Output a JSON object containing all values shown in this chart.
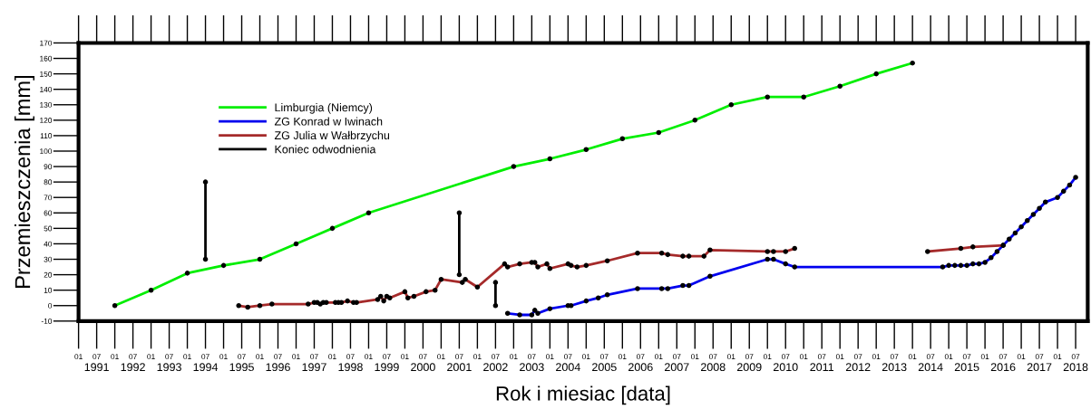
{
  "chart_data": {
    "type": "line",
    "xlabel": "Rok i miesiac [data]",
    "ylabel": "Przemieszczenia [mm]",
    "xlim": [
      "1991-01",
      "2018-11"
    ],
    "ylim": [
      -10,
      170
    ],
    "yticks": [
      -10,
      0,
      10,
      20,
      30,
      40,
      50,
      60,
      70,
      80,
      90,
      100,
      110,
      120,
      130,
      140,
      150,
      160,
      170
    ],
    "xticks": [
      {
        "value": "1991-01",
        "label": "01"
      },
      {
        "value": "1991-07",
        "label": "07"
      },
      {
        "value": "1992-01",
        "label": "01"
      },
      {
        "value": "1992-07",
        "label": "07"
      },
      {
        "value": "1993-01",
        "label": "01"
      },
      {
        "value": "1993-07",
        "label": "07"
      },
      {
        "value": "1994-01",
        "label": "01"
      },
      {
        "value": "1994-07",
        "label": "07"
      },
      {
        "value": "1995-01",
        "label": "01"
      },
      {
        "value": "1995-07",
        "label": "07"
      },
      {
        "value": "1996-01",
        "label": "01"
      },
      {
        "value": "1996-07",
        "label": "07"
      },
      {
        "value": "1997-01",
        "label": "01"
      },
      {
        "value": "1997-07",
        "label": "07"
      },
      {
        "value": "1998-01",
        "label": "01"
      },
      {
        "value": "1998-07",
        "label": "07"
      },
      {
        "value": "1999-01",
        "label": "01"
      },
      {
        "value": "1999-07",
        "label": "07"
      },
      {
        "value": "2000-01",
        "label": "01"
      },
      {
        "value": "2000-07",
        "label": "07"
      },
      {
        "value": "2001-01",
        "label": "01"
      },
      {
        "value": "2001-07",
        "label": "07"
      },
      {
        "value": "2002-01",
        "label": "01"
      },
      {
        "value": "2002-07",
        "label": "07"
      },
      {
        "value": "2003-01",
        "label": "01"
      },
      {
        "value": "2003-07",
        "label": "07"
      },
      {
        "value": "2004-01",
        "label": "01"
      },
      {
        "value": "2004-07",
        "label": "07"
      },
      {
        "value": "2005-01",
        "label": "01"
      },
      {
        "value": "2005-07",
        "label": "07"
      },
      {
        "value": "2006-01",
        "label": "01"
      },
      {
        "value": "2006-07",
        "label": "07"
      },
      {
        "value": "2007-01",
        "label": "01"
      },
      {
        "value": "2007-07",
        "label": "07"
      },
      {
        "value": "2008-01",
        "label": "01"
      },
      {
        "value": "2008-07",
        "label": "07"
      },
      {
        "value": "2009-01",
        "label": "01"
      },
      {
        "value": "2009-07",
        "label": "07"
      },
      {
        "value": "2010-01",
        "label": "01"
      },
      {
        "value": "2010-07",
        "label": "07"
      },
      {
        "value": "2011-01",
        "label": "01"
      },
      {
        "value": "2011-07",
        "label": "07"
      },
      {
        "value": "2012-01",
        "label": "01"
      },
      {
        "value": "2012-07",
        "label": "07"
      },
      {
        "value": "2013-01",
        "label": "01"
      },
      {
        "value": "2013-07",
        "label": "07"
      },
      {
        "value": "2014-01",
        "label": "01"
      },
      {
        "value": "2014-07",
        "label": "07"
      },
      {
        "value": "2015-01",
        "label": "01"
      },
      {
        "value": "2015-07",
        "label": "07"
      },
      {
        "value": "2016-01",
        "label": "01"
      },
      {
        "value": "2016-07",
        "label": "07"
      },
      {
        "value": "2017-01",
        "label": "01"
      },
      {
        "value": "2017-07",
        "label": "07"
      },
      {
        "value": "2018-01",
        "label": "01"
      },
      {
        "value": "2018-07",
        "label": "07"
      }
    ],
    "x2lim": [
      "1991-01",
      "2018-11"
    ],
    "x2ticks": [
      {
        "value": "1991-07",
        "label": "1991"
      },
      {
        "value": "1992-07",
        "label": "1992"
      },
      {
        "value": "1993-07",
        "label": "1993"
      },
      {
        "value": "1994-07",
        "label": "1994"
      },
      {
        "value": "1995-07",
        "label": "1995"
      },
      {
        "value": "1996-07",
        "label": "1996"
      },
      {
        "value": "1997-07",
        "label": "1997"
      },
      {
        "value": "1998-07",
        "label": "1998"
      },
      {
        "value": "1999-07",
        "label": "1999"
      },
      {
        "value": "2000-07",
        "label": "2000"
      },
      {
        "value": "2001-07",
        "label": "2001"
      },
      {
        "value": "2002-07",
        "label": "2002"
      },
      {
        "value": "2003-07",
        "label": "2003"
      },
      {
        "value": "2004-07",
        "label": "2004"
      },
      {
        "value": "2005-07",
        "label": "2005"
      },
      {
        "value": "2006-07",
        "label": "2006"
      },
      {
        "value": "2007-07",
        "label": "2007"
      },
      {
        "value": "2008-07",
        "label": "2008"
      },
      {
        "value": "2009-07",
        "label": "2009"
      },
      {
        "value": "2010-07",
        "label": "2010"
      },
      {
        "value": "2011-07",
        "label": "2011"
      },
      {
        "value": "2012-07",
        "label": "2012"
      },
      {
        "value": "2013-07",
        "label": "2013"
      },
      {
        "value": "2014-07",
        "label": "2014"
      },
      {
        "value": "2015-07",
        "label": "2015"
      },
      {
        "value": "2016-07",
        "label": "2016"
      },
      {
        "value": "2017-07",
        "label": "2017"
      },
      {
        "value": "2018-07",
        "label": "2018"
      }
    ],
    "grid": false,
    "legend": "top left",
    "marker": "circle",
    "line_style": "solid",
    "series": [
      {
        "name": "Limburgia (Niemcy)",
        "color": "#00ee00",
        "x": [
          "1992-01",
          "1993-01",
          "1994-01",
          "1995-01",
          "1996-01",
          "1997-01",
          "1998-01",
          "1999-01",
          "2003-01",
          "2004-01",
          "2005-01",
          "2006-01",
          "2007-01",
          "2008-01",
          "2009-01",
          "2010-01",
          "2011-01",
          "2012-01",
          "2013-01",
          "2014-01"
        ],
        "values": [
          0,
          10,
          21,
          26,
          30,
          40,
          50,
          60,
          90,
          95,
          101,
          108,
          112,
          120,
          130,
          135,
          135,
          142,
          150,
          157
        ]
      },
      {
        "name": "ZG Konrad w Iwinach",
        "color": "#0000ee",
        "x": [
          "2002-11",
          "2003-03",
          "2003-07",
          "2003-08",
          "2003-09",
          "2004-01",
          "2004-07",
          "2004-08",
          "2005-01",
          "2005-05",
          "2005-08",
          "2006-06",
          "2007-02",
          "2007-04",
          "2007-09",
          "2007-11",
          "2008-06",
          "2010-01",
          "2010-03",
          "2010-07",
          "2010-10",
          "2014-11",
          "2015-01",
          "2015-03",
          "2015-05",
          "2015-07",
          "2015-09",
          "2015-11",
          "2016-01",
          "2016-03",
          "2016-05",
          "2016-07",
          "2016-09",
          "2016-11",
          "2017-01",
          "2017-03",
          "2017-05",
          "2017-07",
          "2017-09",
          "2018-01",
          "2018-03",
          "2018-05",
          "2018-07"
        ],
        "values": [
          -5,
          -6,
          -6,
          -3,
          -5,
          -2,
          0,
          0,
          3,
          5,
          7,
          11,
          11,
          11,
          13,
          13,
          19,
          30,
          30,
          27,
          25,
          25,
          26,
          26,
          26,
          26,
          27,
          27,
          28,
          31,
          35,
          39,
          43,
          47,
          51,
          55,
          59,
          63,
          67,
          70,
          74,
          78,
          83
        ]
      },
      {
        "name": "ZG Julia w Wałbrzychu",
        "color": "#a52a2a",
        "x": [
          "1995-06",
          "1995-09",
          "1996-01",
          "1996-05",
          "1997-05",
          "1997-07",
          "1997-08",
          "1997-09",
          "1997-10",
          "1997-11",
          "1998-02",
          "1998-03",
          "1998-04",
          "1998-06",
          "1998-08",
          "1998-09",
          "1999-04",
          "1999-05",
          "1999-06",
          "1999-07",
          "1999-08",
          "2000-01",
          "2000-02",
          "2000-04",
          "2000-08",
          "2000-11",
          "2001-01",
          "2001-08",
          "2001-09",
          "2002-01",
          "2002-10",
          "2002-11",
          "2003-03",
          "2003-07",
          "2003-08",
          "2003-09",
          "2003-12",
          "2004-01",
          "2004-07",
          "2004-08",
          "2004-10",
          "2005-01",
          "2005-08",
          "2006-06",
          "2007-02",
          "2007-04",
          "2007-09",
          "2007-11",
          "2008-04",
          "2008-06",
          "2010-01",
          "2010-03",
          "2010-07",
          "2010-10",
          "2012-01",
          "2014-06",
          "2015-05",
          "2015-09",
          "2016-07"
        ],
        "values": [
          0,
          -1,
          0,
          1,
          1,
          2,
          2,
          1,
          2,
          2,
          2,
          2,
          2,
          3,
          2,
          2,
          4,
          6,
          3,
          6,
          5,
          9,
          5,
          6,
          9,
          10,
          17,
          15,
          17,
          12,
          27,
          25,
          27,
          28,
          28,
          25,
          27,
          24,
          27,
          26,
          25,
          26,
          29,
          34,
          34,
          33,
          32,
          32,
          32,
          36,
          35,
          35,
          35,
          37,
          null,
          35,
          37,
          38,
          39
        ]
      },
      {
        "name": "Koniec odwodnienia",
        "color": "#000000",
        "x": [
          "1994-07",
          "1994-07",
          "1998-01",
          "2001-07",
          "2001-07",
          "2001-09",
          "2002-07",
          "2002-07"
        ],
        "values": [
          30,
          80,
          null,
          20,
          60,
          null,
          0,
          15
        ]
      }
    ]
  }
}
